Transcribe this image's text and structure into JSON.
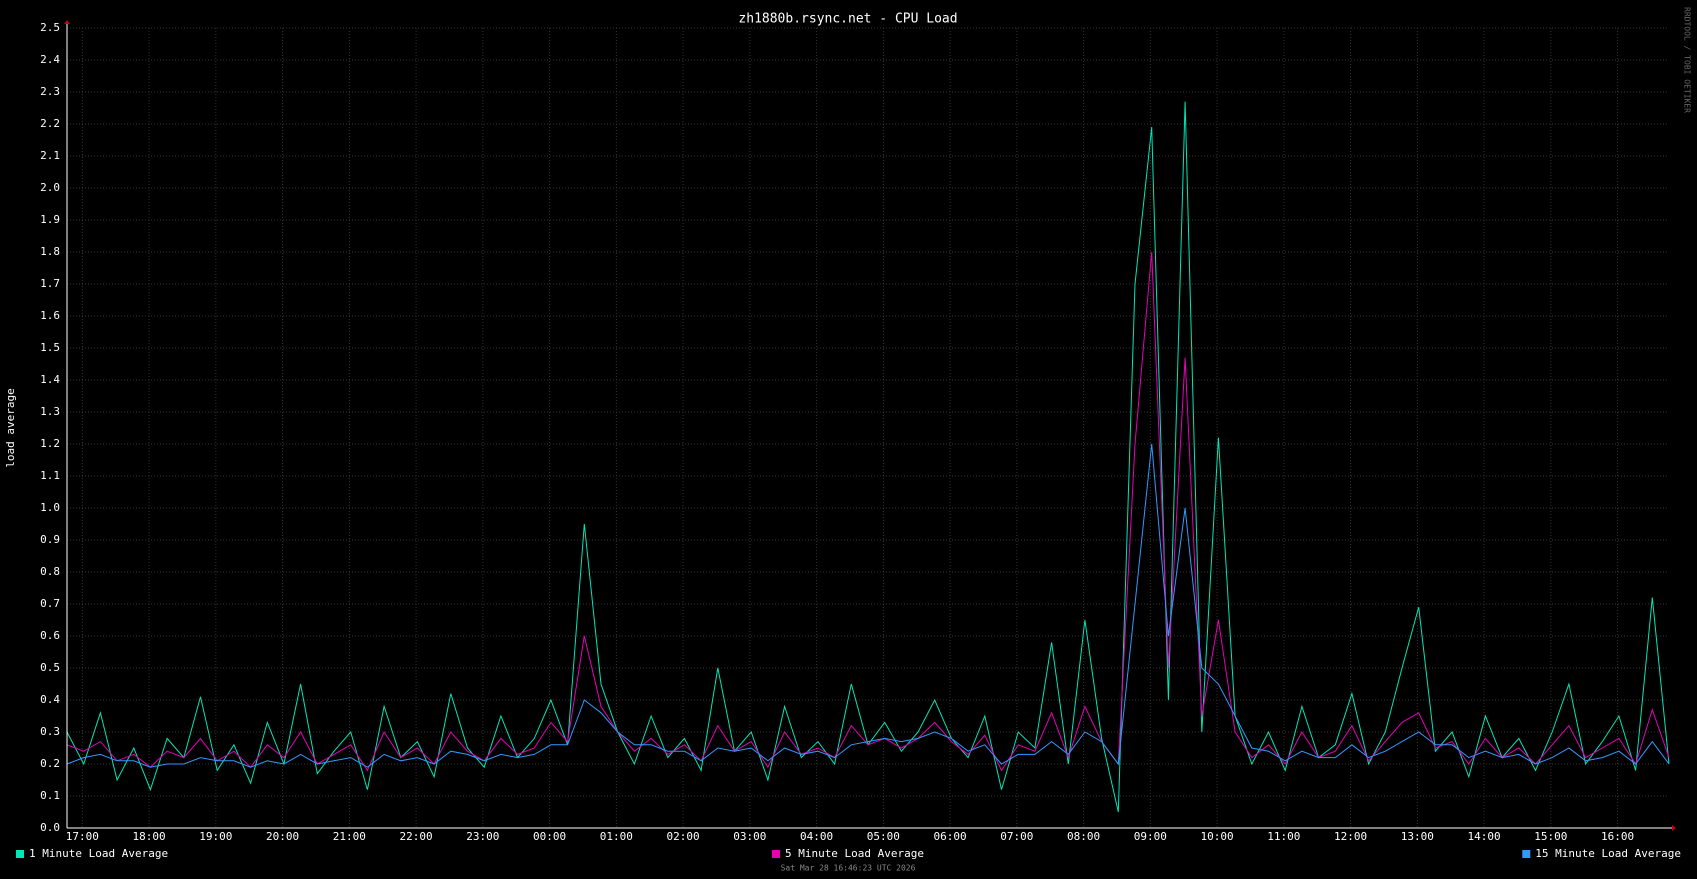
{
  "chart_data": {
    "type": "line",
    "title": "zh1880b.rsync.net - CPU Load",
    "y_label": "load average",
    "footer": "Sat Mar 28 16:46:23 UTC 2026",
    "watermark": "RRDTOOL / TOBI OETIKER",
    "grid": true,
    "xlim": [
      0,
      24
    ],
    "xticks": [
      {
        "value": 0.23,
        "label": "17:00"
      },
      {
        "value": 1.23,
        "label": "18:00"
      },
      {
        "value": 2.23,
        "label": "19:00"
      },
      {
        "value": 3.23,
        "label": "20:00"
      },
      {
        "value": 4.23,
        "label": "21:00"
      },
      {
        "value": 5.23,
        "label": "22:00"
      },
      {
        "value": 6.23,
        "label": "23:00"
      },
      {
        "value": 7.23,
        "label": "00:00"
      },
      {
        "value": 8.23,
        "label": "01:00"
      },
      {
        "value": 9.23,
        "label": "02:00"
      },
      {
        "value": 10.23,
        "label": "03:00"
      },
      {
        "value": 11.23,
        "label": "04:00"
      },
      {
        "value": 12.23,
        "label": "05:00"
      },
      {
        "value": 13.23,
        "label": "06:00"
      },
      {
        "value": 14.23,
        "label": "07:00"
      },
      {
        "value": 15.23,
        "label": "08:00"
      },
      {
        "value": 16.23,
        "label": "09:00"
      },
      {
        "value": 17.23,
        "label": "10:00"
      },
      {
        "value": 18.23,
        "label": "11:00"
      },
      {
        "value": 19.23,
        "label": "12:00"
      },
      {
        "value": 20.23,
        "label": "13:00"
      },
      {
        "value": 21.23,
        "label": "14:00"
      },
      {
        "value": 22.23,
        "label": "15:00"
      },
      {
        "value": 23.23,
        "label": "16:00"
      }
    ],
    "ylim": [
      0,
      2.5
    ],
    "yticks": [
      {
        "value": 0,
        "label": "0.0"
      },
      0.1,
      0.2,
      0.3,
      0.4,
      0.5,
      0.6,
      0.7,
      0.8,
      0.9,
      {
        "value": 1,
        "label": "1.0"
      },
      1.1,
      1.2,
      1.3,
      1.4,
      1.5,
      1.6,
      1.7,
      1.8,
      1.9,
      {
        "value": 2,
        "label": "2.0"
      },
      2.1,
      2.2,
      2.3,
      2.4,
      2.5
    ],
    "x": [
      0,
      0.25,
      0.5,
      0.75,
      1,
      1.25,
      1.5,
      1.75,
      2,
      2.25,
      2.5,
      2.75,
      3,
      3.25,
      3.5,
      3.75,
      4,
      4.25,
      4.5,
      4.75,
      5,
      5.25,
      5.5,
      5.75,
      6,
      6.25,
      6.5,
      6.75,
      7,
      7.25,
      7.5,
      7.75,
      8,
      8.25,
      8.5,
      8.75,
      9,
      9.25,
      9.5,
      9.75,
      10,
      10.25,
      10.5,
      10.75,
      11,
      11.25,
      11.5,
      11.75,
      12,
      12.25,
      12.5,
      12.75,
      13,
      13.25,
      13.5,
      13.75,
      14,
      14.25,
      14.5,
      14.75,
      15,
      15.25,
      15.5,
      15.75,
      16,
      16.25,
      16.5,
      16.75,
      17,
      17.25,
      17.5,
      17.75,
      18,
      18.25,
      18.5,
      18.75,
      19,
      19.25,
      19.5,
      19.75,
      20,
      20.25,
      20.5,
      20.75,
      21,
      21.25,
      21.5,
      21.75,
      22,
      22.25,
      22.5,
      22.75,
      23,
      23.25,
      23.5,
      23.75,
      24
    ],
    "series": [
      {
        "name": "1 Minute Load Average",
        "color": "#00e6b8",
        "values": [
          0.3,
          0.2,
          0.36,
          0.15,
          0.25,
          0.12,
          0.28,
          0.22,
          0.41,
          0.18,
          0.26,
          0.14,
          0.33,
          0.2,
          0.45,
          0.17,
          0.24,
          0.3,
          0.12,
          0.38,
          0.22,
          0.27,
          0.16,
          0.42,
          0.25,
          0.19,
          0.35,
          0.22,
          0.28,
          0.4,
          0.26,
          0.95,
          0.45,
          0.3,
          0.2,
          0.35,
          0.22,
          0.28,
          0.18,
          0.5,
          0.24,
          0.3,
          0.15,
          0.38,
          0.22,
          0.27,
          0.2,
          0.45,
          0.26,
          0.33,
          0.24,
          0.3,
          0.4,
          0.28,
          0.22,
          0.35,
          0.12,
          0.3,
          0.25,
          0.58,
          0.2,
          0.65,
          0.28,
          0.05,
          1.7,
          2.19,
          0.4,
          2.27,
          0.3,
          1.22,
          0.35,
          0.2,
          0.3,
          0.18,
          0.38,
          0.22,
          0.26,
          0.42,
          0.2,
          0.3,
          0.5,
          0.69,
          0.24,
          0.3,
          0.16,
          0.35,
          0.22,
          0.28,
          0.18,
          0.3,
          0.45,
          0.2,
          0.27,
          0.35,
          0.18,
          0.72,
          0.2
        ]
      },
      {
        "name": "5 Minute Load Average",
        "color": "#e600b8",
        "values": [
          0.26,
          0.24,
          0.27,
          0.21,
          0.23,
          0.19,
          0.24,
          0.22,
          0.28,
          0.21,
          0.24,
          0.19,
          0.26,
          0.22,
          0.3,
          0.2,
          0.23,
          0.26,
          0.18,
          0.3,
          0.22,
          0.25,
          0.2,
          0.3,
          0.24,
          0.21,
          0.28,
          0.23,
          0.25,
          0.33,
          0.27,
          0.6,
          0.38,
          0.3,
          0.24,
          0.28,
          0.23,
          0.26,
          0.21,
          0.32,
          0.24,
          0.27,
          0.19,
          0.3,
          0.23,
          0.25,
          0.22,
          0.32,
          0.26,
          0.28,
          0.25,
          0.28,
          0.33,
          0.27,
          0.23,
          0.29,
          0.18,
          0.26,
          0.24,
          0.36,
          0.22,
          0.38,
          0.27,
          0.2,
          1.2,
          1.8,
          0.5,
          1.47,
          0.35,
          0.65,
          0.3,
          0.22,
          0.26,
          0.2,
          0.3,
          0.22,
          0.24,
          0.32,
          0.21,
          0.27,
          0.33,
          0.36,
          0.25,
          0.27,
          0.2,
          0.28,
          0.22,
          0.25,
          0.2,
          0.26,
          0.32,
          0.22,
          0.25,
          0.28,
          0.2,
          0.37,
          0.22
        ]
      },
      {
        "name": "15 Minute Load Average",
        "color": "#3399ff",
        "values": [
          0.2,
          0.22,
          0.23,
          0.21,
          0.21,
          0.19,
          0.2,
          0.2,
          0.22,
          0.21,
          0.21,
          0.19,
          0.21,
          0.2,
          0.23,
          0.2,
          0.21,
          0.22,
          0.19,
          0.23,
          0.21,
          0.22,
          0.2,
          0.24,
          0.23,
          0.21,
          0.23,
          0.22,
          0.23,
          0.26,
          0.26,
          0.4,
          0.36,
          0.3,
          0.26,
          0.26,
          0.24,
          0.24,
          0.21,
          0.25,
          0.24,
          0.25,
          0.21,
          0.25,
          0.23,
          0.24,
          0.22,
          0.26,
          0.27,
          0.28,
          0.27,
          0.28,
          0.3,
          0.28,
          0.24,
          0.26,
          0.2,
          0.23,
          0.23,
          0.27,
          0.23,
          0.3,
          0.27,
          0.2,
          0.7,
          1.2,
          0.6,
          1.0,
          0.5,
          0.45,
          0.35,
          0.25,
          0.24,
          0.21,
          0.24,
          0.22,
          0.22,
          0.26,
          0.22,
          0.24,
          0.27,
          0.3,
          0.26,
          0.26,
          0.22,
          0.24,
          0.22,
          0.23,
          0.2,
          0.22,
          0.25,
          0.21,
          0.22,
          0.24,
          0.2,
          0.27,
          0.2
        ]
      }
    ]
  }
}
